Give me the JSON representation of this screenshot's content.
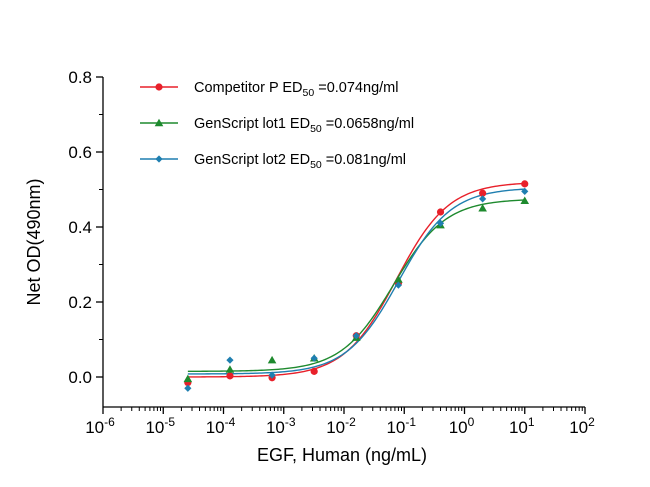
{
  "chart_data": {
    "type": "scatter",
    "title": "",
    "xlabel": "EGF, Human (ng/mL)",
    "ylabel": "Net OD(490nm)",
    "x_scale": "log10",
    "xlim": [
      1e-06,
      100
    ],
    "ylim": [
      -0.08,
      0.8
    ],
    "x_ticks": [
      {
        "value": 1e-06,
        "base": "10",
        "exp": "-6"
      },
      {
        "value": 1e-05,
        "base": "10",
        "exp": "-5"
      },
      {
        "value": 0.0001,
        "base": "10",
        "exp": "-4"
      },
      {
        "value": 0.001,
        "base": "10",
        "exp": "-3"
      },
      {
        "value": 0.01,
        "base": "10",
        "exp": "-2"
      },
      {
        "value": 0.1,
        "base": "10",
        "exp": "-1"
      },
      {
        "value": 1,
        "base": "10",
        "exp": "0"
      },
      {
        "value": 10,
        "base": "10",
        "exp": "1"
      },
      {
        "value": 100,
        "base": "10",
        "exp": "2"
      }
    ],
    "y_ticks": [
      {
        "value": 0.0,
        "label": "0.0"
      },
      {
        "value": 0.2,
        "label": "0.2"
      },
      {
        "value": 0.4,
        "label": "0.4"
      },
      {
        "value": 0.6,
        "label": "0.6"
      },
      {
        "value": 0.8,
        "label": "0.8"
      }
    ],
    "grid": false,
    "legend_position": "top-left",
    "series": [
      {
        "label_prefix": "Competitor P  ED",
        "label_sub": "50",
        "label_suffix": " =0.074ng/ml",
        "color": "#e8202a",
        "marker": "circle",
        "x": [
          2.56e-05,
          0.000128,
          0.00064,
          0.0032,
          0.016,
          0.08,
          0.4,
          2,
          10
        ],
        "y": [
          -0.015,
          0.003,
          -0.002,
          0.015,
          0.11,
          0.25,
          0.44,
          0.49,
          0.515
        ],
        "fit": {
          "bottom": 0.0,
          "top": 0.52,
          "ec50": 0.074,
          "hill": 1.0
        }
      },
      {
        "label_prefix": "GenScript lot1 ED",
        "label_sub": "50",
        "label_suffix": " =0.0658ng/ml",
        "color": "#1e8a2e",
        "marker": "triangle",
        "x": [
          2.56e-05,
          0.000128,
          0.00064,
          0.0032,
          0.016,
          0.08,
          0.4,
          2,
          10
        ],
        "y": [
          -0.005,
          0.02,
          0.045,
          0.05,
          0.105,
          0.26,
          0.405,
          0.45,
          0.47
        ],
        "fit": {
          "bottom": 0.015,
          "top": 0.475,
          "ec50": 0.0658,
          "hill": 1.0
        }
      },
      {
        "label_prefix": "GenScript lot2 ED",
        "label_sub": "50",
        "label_suffix": " =0.081ng/ml",
        "color": "#1f7fb0",
        "marker": "diamond",
        "x": [
          2.56e-05,
          0.000128,
          0.00064,
          0.0032,
          0.016,
          0.08,
          0.4,
          2,
          10
        ],
        "y": [
          -0.03,
          0.045,
          0.005,
          0.05,
          0.11,
          0.245,
          0.41,
          0.475,
          0.495
        ],
        "fit": {
          "bottom": 0.008,
          "top": 0.505,
          "ec50": 0.081,
          "hill": 1.0
        }
      }
    ]
  }
}
